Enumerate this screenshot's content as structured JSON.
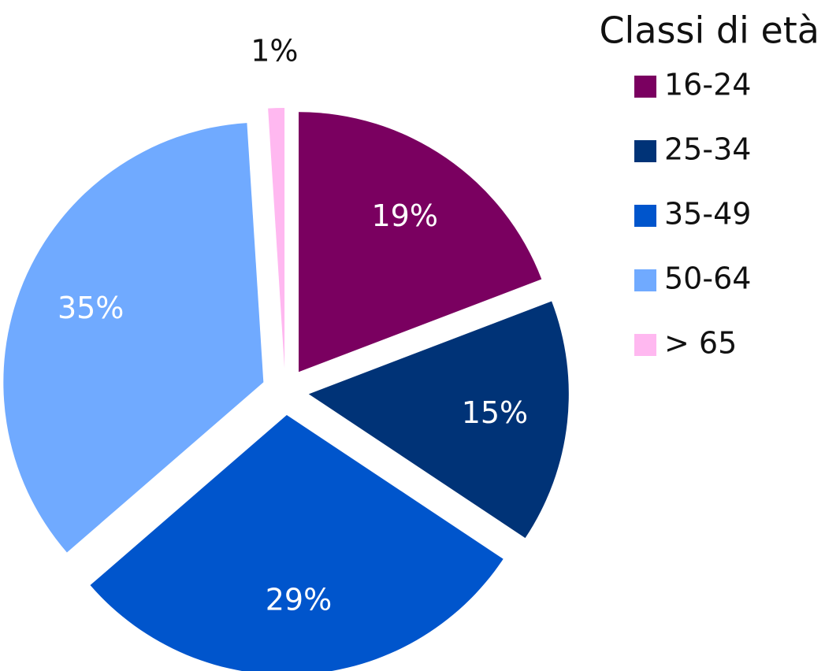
{
  "chart_data": {
    "type": "pie",
    "legend_title": "Classi di età",
    "categories": [
      "16-24",
      "25-34",
      "35-49",
      "50-64",
      "> 65"
    ],
    "values": [
      19,
      15,
      29,
      35,
      1
    ],
    "value_labels": [
      "19%",
      "15%",
      "29%",
      "35%",
      "1%"
    ],
    "colors": [
      "#7a0060",
      "#003377",
      "#0055cc",
      "#70aaff",
      "#ffb8f0"
    ],
    "legend": "right"
  }
}
